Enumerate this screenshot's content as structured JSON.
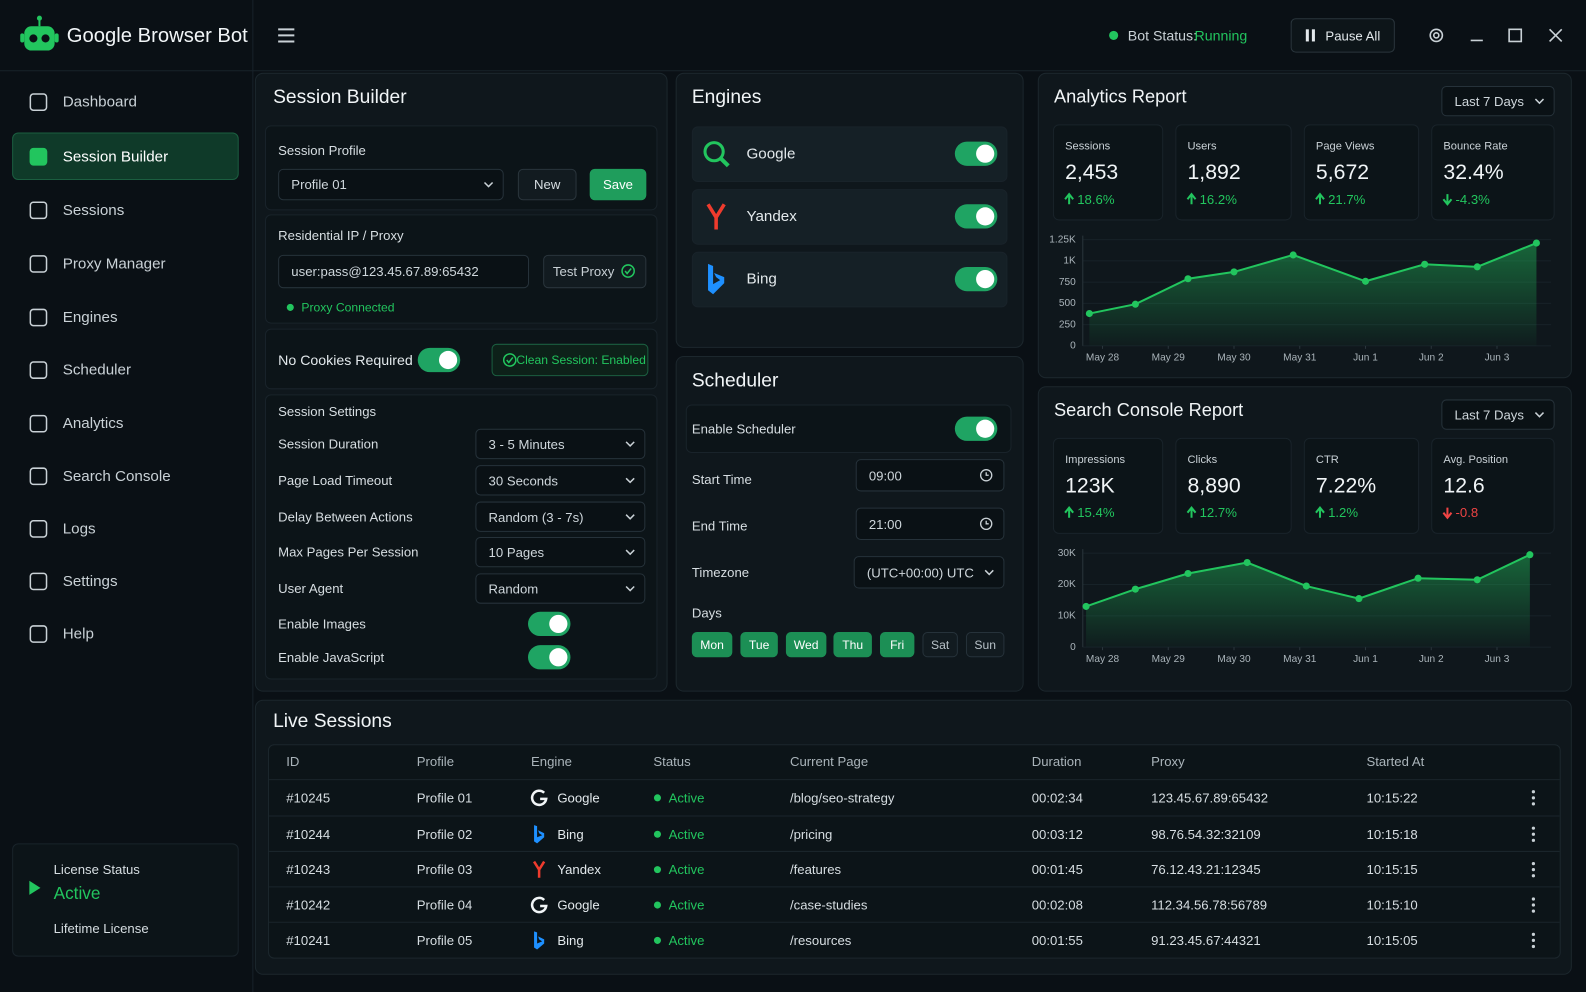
{
  "header": {
    "app_name": "Google Browser Bot",
    "status_label": "Bot Status:",
    "status_value": "Running",
    "pause_button": "Pause All"
  },
  "sidebar": {
    "nav": [
      {
        "label": "Dashboard"
      },
      {
        "label": "Session Builder",
        "selected": true
      },
      {
        "label": "Sessions"
      },
      {
        "label": "Proxy Manager"
      },
      {
        "label": "Engines"
      },
      {
        "label": "Scheduler"
      },
      {
        "label": "Analytics"
      },
      {
        "label": "Search Console"
      },
      {
        "label": "Logs"
      },
      {
        "label": "Settings"
      },
      {
        "label": "Help"
      }
    ],
    "license": {
      "label": "License Status",
      "status": "Active",
      "type": "Lifetime License"
    }
  },
  "session_builder": {
    "title": "Session Builder",
    "profile": {
      "label": "Session Profile",
      "selected": "Profile 01",
      "new_button": "New",
      "save_button": "Save"
    },
    "proxy": {
      "label": "Residential IP / Proxy",
      "value": "user:pass@123.45.67.89:65432",
      "test_button": "Test Proxy",
      "status": "Proxy Connected"
    },
    "cookies": {
      "label": "No Cookies Required",
      "enabled": true,
      "badge": "Clean Session: Enabled"
    },
    "settings": {
      "title": "Session Settings",
      "fields": [
        {
          "label": "Session Duration",
          "value": "3 - 5 Minutes"
        },
        {
          "label": "Page Load Timeout",
          "value": "30 Seconds"
        },
        {
          "label": "Delay Between Actions",
          "value": "Random (3 - 7s)"
        },
        {
          "label": "Max Pages Per Session",
          "value": "10 Pages"
        },
        {
          "label": "User Agent",
          "value": "Random"
        }
      ],
      "toggles": [
        {
          "label": "Enable Images",
          "enabled": true
        },
        {
          "label": "Enable JavaScript",
          "enabled": true
        }
      ]
    }
  },
  "engines": {
    "title": "Engines",
    "items": [
      {
        "name": "Google",
        "enabled": true
      },
      {
        "name": "Yandex",
        "enabled": true
      },
      {
        "name": "Bing",
        "enabled": true
      }
    ]
  },
  "scheduler": {
    "title": "Scheduler",
    "enable": {
      "label": "Enable Scheduler",
      "enabled": true
    },
    "start": {
      "label": "Start Time",
      "value": "09:00"
    },
    "end": {
      "label": "End Time",
      "value": "21:00"
    },
    "timezone": {
      "label": "Timezone",
      "value": "(UTC+00:00) UTC"
    },
    "days": {
      "label": "Days",
      "items": [
        {
          "name": "Mon",
          "selected": true
        },
        {
          "name": "Tue",
          "selected": true
        },
        {
          "name": "Wed",
          "selected": true
        },
        {
          "name": "Thu",
          "selected": true
        },
        {
          "name": "Fri",
          "selected": true
        },
        {
          "name": "Sat",
          "selected": false
        },
        {
          "name": "Sun",
          "selected": false
        }
      ]
    }
  },
  "analytics": {
    "title": "Analytics Report",
    "range": "Last 7 Days",
    "stats": [
      {
        "label": "Sessions",
        "value": "2,453",
        "change": "18.6%",
        "trend": "up",
        "positive": true
      },
      {
        "label": "Users",
        "value": "1,892",
        "change": "16.2%",
        "trend": "up",
        "positive": true
      },
      {
        "label": "Page Views",
        "value": "5,672",
        "change": "21.7%",
        "trend": "up",
        "positive": true
      },
      {
        "label": "Bounce Rate",
        "value": "32.4%",
        "change": "-4.3%",
        "trend": "down",
        "positive": true
      }
    ],
    "chart": {
      "type": "area",
      "color": "#22c55e",
      "grid": true,
      "x": [
        -0.2,
        0.5,
        1.3,
        2,
        2.9,
        4,
        4.9,
        5.7,
        6.6
      ],
      "values": [
        380,
        490,
        790,
        870,
        1070,
        760,
        960,
        930,
        1210
      ],
      "xlim": [
        -0.3,
        6.7
      ],
      "xticks": [
        {
          "value": 0,
          "label": "May 28"
        },
        {
          "value": 1,
          "label": "May 29"
        },
        {
          "value": 2,
          "label": "May 30"
        },
        {
          "value": 3,
          "label": "May 31"
        },
        {
          "value": 4,
          "label": "Jun 1"
        },
        {
          "value": 5,
          "label": "Jun 2"
        },
        {
          "value": 6,
          "label": "Jun 3"
        }
      ],
      "ylim": [
        0,
        1250
      ],
      "yticks": [
        0,
        250,
        500,
        750,
        {
          "value": 1000,
          "label": "1K"
        },
        {
          "value": 1250,
          "label": "1.25K"
        }
      ]
    }
  },
  "search_console": {
    "title": "Search Console Report",
    "range": "Last 7 Days",
    "stats": [
      {
        "label": "Impressions",
        "value": "123K",
        "change": "15.4%",
        "trend": "up",
        "positive": true
      },
      {
        "label": "Clicks",
        "value": "8,890",
        "change": "12.7%",
        "trend": "up",
        "positive": true
      },
      {
        "label": "CTR",
        "value": "7.22%",
        "change": "1.2%",
        "trend": "up",
        "positive": true
      },
      {
        "label": "Avg. Position",
        "value": "12.6",
        "change": "-0.8",
        "trend": "down",
        "positive": false
      }
    ],
    "chart": {
      "type": "area",
      "color": "#22c55e",
      "grid": true,
      "x": [
        -0.25,
        0.5,
        1.3,
        2.2,
        3.1,
        3.9,
        4.8,
        5.7,
        6.5
      ],
      "values": [
        13000,
        18500,
        23500,
        27000,
        19500,
        15500,
        22000,
        21500,
        29500
      ],
      "xlim": [
        -0.3,
        6.7
      ],
      "xticks": [
        {
          "value": 0,
          "label": "May 28"
        },
        {
          "value": 1,
          "label": "May 29"
        },
        {
          "value": 2,
          "label": "May 30"
        },
        {
          "value": 3,
          "label": "May 31"
        },
        {
          "value": 4,
          "label": "Jun 1"
        },
        {
          "value": 5,
          "label": "Jun 2"
        },
        {
          "value": 6,
          "label": "Jun 3"
        }
      ],
      "ylim": [
        0,
        30000
      ],
      "yticks": [
        0,
        {
          "value": 10000,
          "label": "10K"
        },
        {
          "value": 20000,
          "label": "20K"
        },
        {
          "value": 30000,
          "label": "30K"
        }
      ]
    }
  },
  "live_sessions": {
    "title": "Live Sessions",
    "columns": [
      "ID",
      "Profile",
      "Engine",
      "Status",
      "Current Page",
      "Duration",
      "Proxy",
      "Started At"
    ],
    "rows": [
      [
        "#10245",
        "Profile 01",
        "Google",
        "Active",
        "/blog/seo-strategy",
        "00:02:34",
        "123.45.67.89:65432",
        "10:15:22"
      ],
      [
        "#10244",
        "Profile 02",
        "Bing",
        "Active",
        "/pricing",
        "00:03:12",
        "98.76.54.32:32109",
        "10:15:18"
      ],
      [
        "#10243",
        "Profile 03",
        "Yandex",
        "Active",
        "/features",
        "00:01:45",
        "76.12.43.21:12345",
        "10:15:15"
      ],
      [
        "#10242",
        "Profile 04",
        "Google",
        "Active",
        "/case-studies",
        "00:02:08",
        "112.34.56.78:56789",
        "10:15:10"
      ],
      [
        "#10241",
        "Profile 05",
        "Bing",
        "Active",
        "/resources",
        "00:01:55",
        "91.23.45.67:44321",
        "10:15:05"
      ]
    ]
  }
}
